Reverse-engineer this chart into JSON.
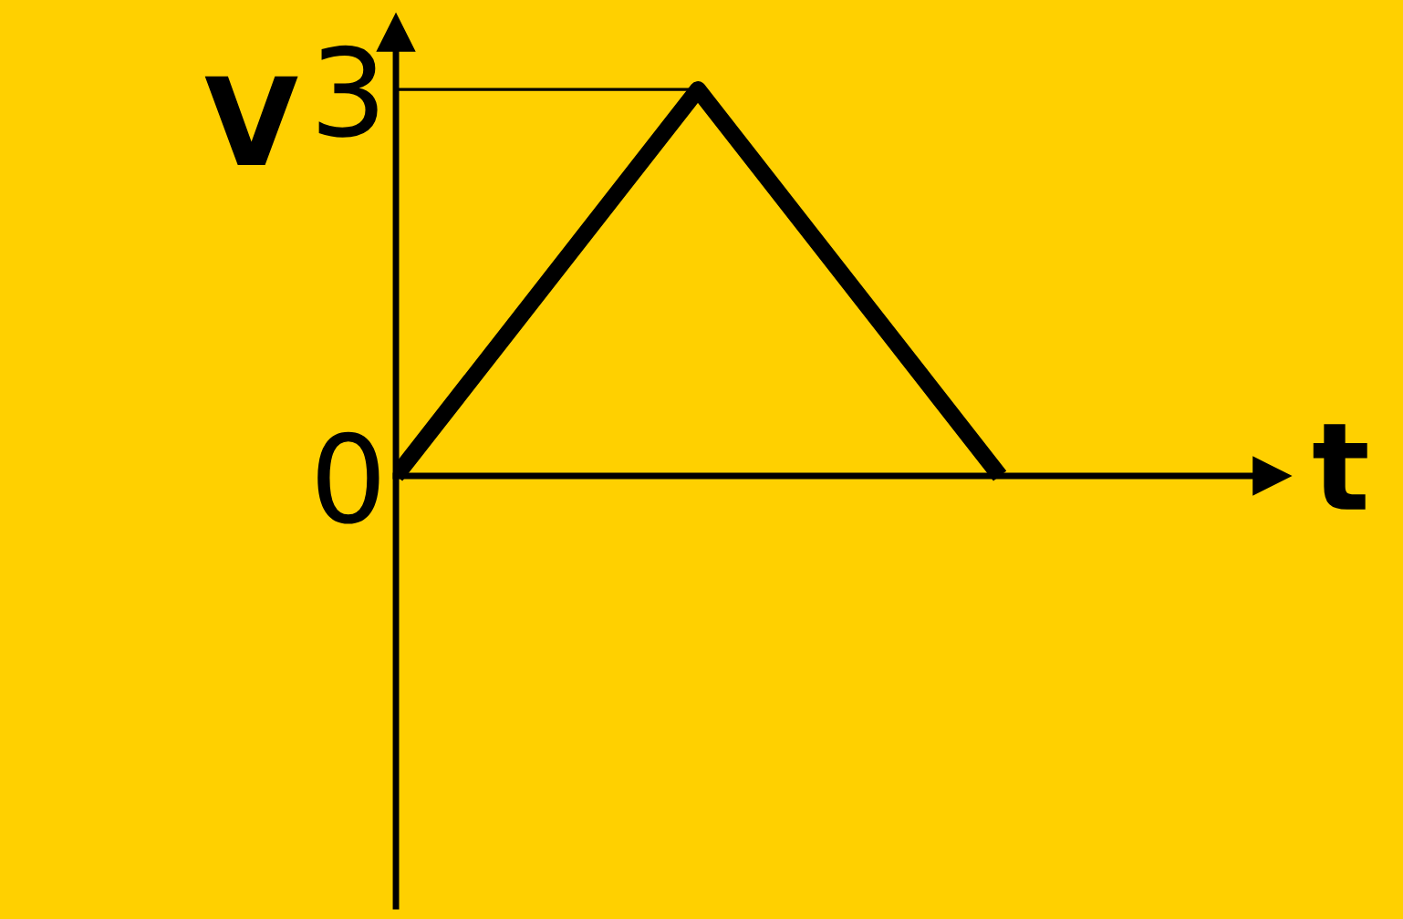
{
  "chart_data": {
    "type": "line",
    "xlabel": "t",
    "ylabel": "V",
    "categories": [
      null,
      null,
      null
    ],
    "series": [
      {
        "color": "#000000",
        "values": [
          0,
          3,
          0
        ]
      }
    ],
    "ylim": [
      -3.34,
      3.44
    ],
    "yticks": [
      0,
      3
    ],
    "ref_lines": [
      {
        "axis": "y",
        "value": 3,
        "color": "#000000"
      }
    ],
    "marker": "none",
    "line_style": "solid"
  }
}
